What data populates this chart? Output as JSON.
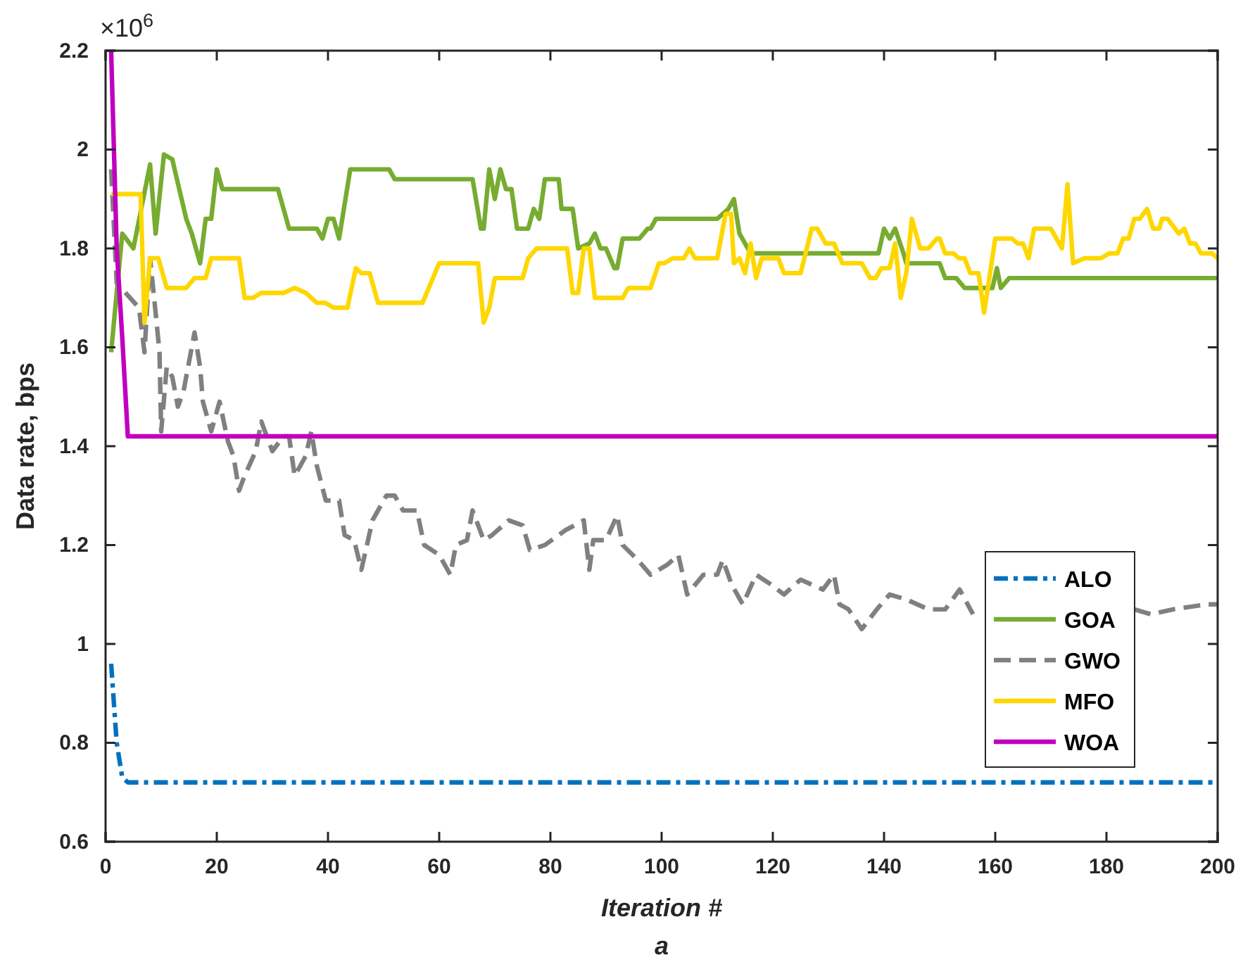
{
  "chart_data": {
    "type": "line",
    "xlabel": "Iteration #",
    "ylabel": "Data rate, bps",
    "annotations": [
      "×10$^{6}$",
      "a"
    ],
    "xlim": [
      0,
      200
    ],
    "xticks": [
      0,
      20,
      40,
      60,
      80,
      100,
      120,
      140,
      160,
      180,
      200
    ],
    "ylim": [
      0.6,
      2.2
    ],
    "yticks": [
      0.6,
      0.8,
      1,
      1.2,
      1.4,
      1.6,
      1.8,
      2,
      2.2
    ],
    "grid": false,
    "legend": "bottom right",
    "series": [
      {
        "name": "ALO",
        "color": "#0072bd",
        "line_style": "dashdot",
        "x": [
          1,
          2,
          3,
          4,
          200
        ],
        "values": [
          0.96,
          0.8,
          0.73,
          0.72,
          0.72
        ]
      },
      {
        "name": "GOA",
        "color": "#77ac30",
        "line_style": "solid",
        "x": [
          1,
          3,
          5,
          8,
          9,
          10.5,
          12,
          14.5,
          15.5,
          17,
          18,
          19,
          20,
          21,
          31,
          33,
          38,
          39,
          40,
          41,
          42,
          44,
          51,
          52,
          66,
          67.5,
          68,
          69,
          70,
          71,
          72,
          73,
          74,
          76,
          77,
          78,
          79,
          81.5,
          82,
          84,
          85,
          87,
          88,
          89,
          90,
          91.5,
          92,
          93,
          96,
          97.5,
          98,
          99,
          110,
          112,
          113,
          114,
          116,
          139,
          140,
          141,
          142,
          143.5,
          144,
          150,
          151,
          153,
          154.5,
          159.5,
          160.3,
          161,
          162.5,
          200
        ],
        "values": [
          1.59,
          1.83,
          1.8,
          1.97,
          1.83,
          1.99,
          1.98,
          1.86,
          1.83,
          1.77,
          1.86,
          1.86,
          1.96,
          1.92,
          1.92,
          1.84,
          1.84,
          1.82,
          1.86,
          1.86,
          1.82,
          1.96,
          1.96,
          1.94,
          1.94,
          1.84,
          1.84,
          1.96,
          1.9,
          1.96,
          1.92,
          1.92,
          1.84,
          1.84,
          1.88,
          1.86,
          1.94,
          1.94,
          1.88,
          1.88,
          1.8,
          1.81,
          1.83,
          1.8,
          1.8,
          1.76,
          1.76,
          1.82,
          1.82,
          1.84,
          1.84,
          1.86,
          1.86,
          1.88,
          1.9,
          1.83,
          1.79,
          1.79,
          1.84,
          1.82,
          1.84,
          1.79,
          1.77,
          1.77,
          1.74,
          1.74,
          1.72,
          1.72,
          1.76,
          1.72,
          1.74,
          1.74
        ]
      },
      {
        "name": "GWO",
        "color": "#808080",
        "line_style": "dashed",
        "x": [
          1,
          2,
          6,
          7,
          8,
          9,
          9.7,
          10,
          11,
          12,
          13,
          14,
          16,
          17,
          17.5,
          19,
          20.5,
          22,
          23,
          24,
          25,
          27,
          28,
          30,
          32,
          33,
          34,
          36,
          37,
          38,
          39.6,
          42,
          43,
          44.7,
          46,
          48,
          50.5,
          52,
          53.5,
          56,
          57.3,
          60,
          62,
          63,
          65,
          66,
          68,
          69.5,
          72.5,
          75,
          76.3,
          79,
          82.7,
          86,
          87,
          87.7,
          90,
          92,
          93,
          95.7,
          98,
          101,
          103,
          104.6,
          107.5,
          110,
          111,
          112.6,
          114.6,
          117,
          119.7,
          122,
          125,
          129,
          131,
          132,
          133.6,
          136,
          138.7,
          141,
          144,
          148,
          151,
          153.6,
          156,
          170,
          185,
          188,
          192,
          198,
          200
        ],
        "values": [
          1.96,
          1.73,
          1.68,
          1.59,
          1.78,
          1.67,
          1.59,
          1.43,
          1.56,
          1.54,
          1.48,
          1.51,
          1.63,
          1.56,
          1.49,
          1.43,
          1.49,
          1.41,
          1.38,
          1.31,
          1.34,
          1.39,
          1.45,
          1.39,
          1.42,
          1.42,
          1.34,
          1.38,
          1.43,
          1.36,
          1.29,
          1.29,
          1.22,
          1.21,
          1.15,
          1.25,
          1.3,
          1.3,
          1.27,
          1.27,
          1.2,
          1.18,
          1.14,
          1.2,
          1.21,
          1.27,
          1.21,
          1.22,
          1.25,
          1.24,
          1.19,
          1.2,
          1.23,
          1.25,
          1.15,
          1.21,
          1.21,
          1.26,
          1.2,
          1.17,
          1.14,
          1.16,
          1.18,
          1.1,
          1.14,
          1.14,
          1.17,
          1.12,
          1.08,
          1.14,
          1.12,
          1.1,
          1.13,
          1.11,
          1.14,
          1.08,
          1.07,
          1.03,
          1.07,
          1.1,
          1.09,
          1.07,
          1.07,
          1.11,
          1.06,
          null,
          1.07,
          1.06,
          1.07,
          1.08,
          1.08
        ]
      },
      {
        "name": "MFO",
        "color": "#ffd700",
        "line_style": "solid",
        "x": [
          1,
          6.3,
          7,
          8,
          9.5,
          11,
          14.5,
          16,
          18,
          19,
          24,
          25,
          26.5,
          28,
          32,
          34,
          36,
          38,
          39.5,
          41,
          43.5,
          45,
          46,
          47.5,
          49,
          57,
          60,
          67,
          68,
          69,
          70,
          75,
          76,
          77.5,
          83,
          84,
          85,
          86,
          87,
          88,
          93,
          94,
          98,
          99.5,
          100.5,
          102,
          104,
          105,
          106,
          110,
          111.5,
          112.5,
          113,
          114,
          115,
          116,
          117,
          118,
          121,
          122,
          125,
          127,
          128,
          129.5,
          131,
          132.5,
          136,
          137.5,
          138.5,
          139.5,
          141,
          142,
          143,
          144,
          145,
          146.5,
          148,
          149.5,
          150,
          151,
          152.5,
          153.5,
          154.5,
          155.5,
          157,
          158,
          160,
          163,
          164,
          165,
          166,
          167,
          170,
          172,
          173,
          174,
          176,
          179,
          180.5,
          182,
          183,
          184,
          185,
          186,
          187.3,
          188.4,
          189.5,
          190,
          191,
          193,
          194,
          195,
          196,
          197,
          199,
          200
        ],
        "values": [
          1.91,
          1.91,
          1.65,
          1.78,
          1.78,
          1.72,
          1.72,
          1.74,
          1.74,
          1.78,
          1.78,
          1.7,
          1.7,
          1.71,
          1.71,
          1.72,
          1.71,
          1.69,
          1.69,
          1.68,
          1.68,
          1.76,
          1.75,
          1.75,
          1.69,
          1.69,
          1.77,
          1.77,
          1.65,
          1.68,
          1.74,
          1.74,
          1.78,
          1.8,
          1.8,
          1.71,
          1.71,
          1.8,
          1.8,
          1.7,
          1.7,
          1.72,
          1.72,
          1.77,
          1.77,
          1.78,
          1.78,
          1.8,
          1.78,
          1.78,
          1.87,
          1.87,
          1.77,
          1.78,
          1.75,
          1.81,
          1.74,
          1.78,
          1.78,
          1.75,
          1.75,
          1.84,
          1.84,
          1.81,
          1.81,
          1.77,
          1.77,
          1.74,
          1.74,
          1.76,
          1.76,
          1.81,
          1.7,
          1.75,
          1.86,
          1.8,
          1.8,
          1.82,
          1.82,
          1.79,
          1.79,
          1.78,
          1.78,
          1.75,
          1.75,
          1.67,
          1.82,
          1.82,
          1.81,
          1.81,
          1.78,
          1.84,
          1.84,
          1.8,
          1.93,
          1.77,
          1.78,
          1.78,
          1.79,
          1.79,
          1.82,
          1.82,
          1.86,
          1.86,
          1.88,
          1.84,
          1.84,
          1.86,
          1.86,
          1.83,
          1.84,
          1.81,
          1.81,
          1.79,
          1.79,
          1.78
        ]
      },
      {
        "name": "WOA",
        "color": "#c000c0",
        "line_style": "solid",
        "x": [
          1,
          2,
          3,
          4,
          200
        ],
        "values": [
          2.2,
          1.8,
          1.62,
          1.42,
          1.42
        ]
      }
    ]
  }
}
